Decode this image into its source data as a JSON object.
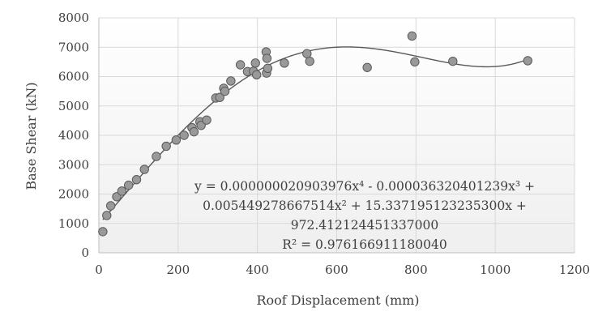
{
  "chart_data": {
    "type": "scatter",
    "title": "",
    "xlabel": "Roof Displacement (mm)",
    "ylabel": "Base Shear (kN)",
    "xlim": [
      0,
      1200
    ],
    "ylim": [
      0,
      8000
    ],
    "x_ticks": [
      "0",
      "200",
      "400",
      "600",
      "800",
      "1000",
      "1200"
    ],
    "y_ticks": [
      "0",
      "1000",
      "2000",
      "3000",
      "4000",
      "5000",
      "6000",
      "7000",
      "8000"
    ],
    "grid": true,
    "legend": "none",
    "points": [
      [
        10,
        720
      ],
      [
        20,
        1270
      ],
      [
        30,
        1600
      ],
      [
        45,
        1910
      ],
      [
        58,
        2100
      ],
      [
        75,
        2300
      ],
      [
        95,
        2490
      ],
      [
        115,
        2840
      ],
      [
        145,
        3280
      ],
      [
        170,
        3630
      ],
      [
        195,
        3840
      ],
      [
        215,
        4000
      ],
      [
        235,
        4260
      ],
      [
        240,
        4120
      ],
      [
        255,
        4460
      ],
      [
        258,
        4340
      ],
      [
        272,
        4520
      ],
      [
        295,
        5270
      ],
      [
        305,
        5290
      ],
      [
        315,
        5600
      ],
      [
        318,
        5500
      ],
      [
        333,
        5850
      ],
      [
        357,
        6400
      ],
      [
        375,
        6170
      ],
      [
        390,
        6180
      ],
      [
        395,
        6460
      ],
      [
        398,
        6060
      ],
      [
        422,
        6840
      ],
      [
        423,
        6120
      ],
      [
        424,
        6620
      ],
      [
        426,
        6280
      ],
      [
        468,
        6460
      ],
      [
        525,
        6780
      ],
      [
        532,
        6520
      ],
      [
        677,
        6310
      ],
      [
        790,
        7380
      ],
      [
        797,
        6500
      ],
      [
        893,
        6520
      ],
      [
        1082,
        6540
      ]
    ],
    "trendline": {
      "type": "polynomial",
      "order": 4,
      "coefficients": [
        2.0903976e-08,
        -3.6320401239e-05,
        0.005449278667514,
        15.3371951232353,
        972.412124451337
      ],
      "equation_lines": [
        "y = 0.000000020903976x⁴ - 0.000036320401239x³ +",
        "0.005449278667514x² + 15.337195123235300x +",
        "972.412124451337000",
        "R² = 0.976166911180040"
      ]
    },
    "colors": {
      "marker_fill": "#999999",
      "marker_stroke": "#595959",
      "trendline": "#595959",
      "grid": "#d9d9d9",
      "axis": "#bfbfbf",
      "text": "#404040"
    }
  }
}
